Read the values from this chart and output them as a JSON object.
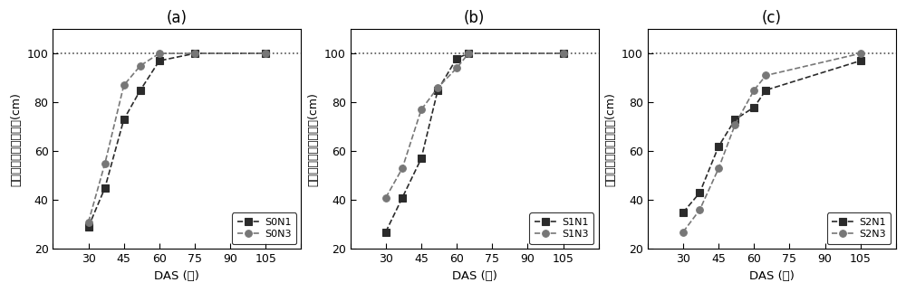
{
  "panels": [
    {
      "label": "(a)",
      "series": [
        {
          "name": "S0N1",
          "x": [
            30,
            37,
            45,
            52,
            60,
            75,
            105
          ],
          "y": [
            29,
            45,
            73,
            85,
            97,
            100,
            100
          ],
          "color": "#2b2b2b",
          "marker": "s",
          "linestyle": "--"
        },
        {
          "name": "S0N3",
          "x": [
            30,
            37,
            45,
            52,
            60,
            75,
            105
          ],
          "y": [
            31,
            55,
            87,
            95,
            100,
            100,
            100
          ],
          "color": "#777777",
          "marker": "o",
          "linestyle": "--"
        }
      ]
    },
    {
      "label": "(b)",
      "series": [
        {
          "name": "S1N1",
          "x": [
            30,
            37,
            45,
            52,
            60,
            65,
            105
          ],
          "y": [
            27,
            41,
            57,
            85,
            98,
            100,
            100
          ],
          "color": "#2b2b2b",
          "marker": "s",
          "linestyle": "--"
        },
        {
          "name": "S1N3",
          "x": [
            30,
            37,
            45,
            52,
            60,
            65,
            105
          ],
          "y": [
            41,
            53,
            77,
            86,
            94,
            100,
            100
          ],
          "color": "#777777",
          "marker": "o",
          "linestyle": "--"
        }
      ]
    },
    {
      "label": "(c)",
      "series": [
        {
          "name": "S2N1",
          "x": [
            30,
            37,
            45,
            52,
            60,
            65,
            105
          ],
          "y": [
            35,
            43,
            62,
            73,
            78,
            85,
            97
          ],
          "color": "#2b2b2b",
          "marker": "s",
          "linestyle": "--"
        },
        {
          "name": "S2N3",
          "x": [
            30,
            37,
            45,
            52,
            60,
            65,
            105
          ],
          "y": [
            27,
            36,
            53,
            71,
            85,
            91,
            100
          ],
          "color": "#777777",
          "marker": "o",
          "linestyle": "--"
        }
      ]
    }
  ],
  "ylabel": "最大根系深度观测结果(cm)",
  "xlabel": "DAS (天)",
  "xlim": [
    15,
    120
  ],
  "ylim": [
    20,
    110
  ],
  "yticks": [
    20,
    40,
    60,
    80,
    100
  ],
  "xticks": [
    15,
    30,
    45,
    60,
    75,
    90,
    105,
    120
  ],
  "hline_y": 100,
  "background_color": "#ffffff"
}
